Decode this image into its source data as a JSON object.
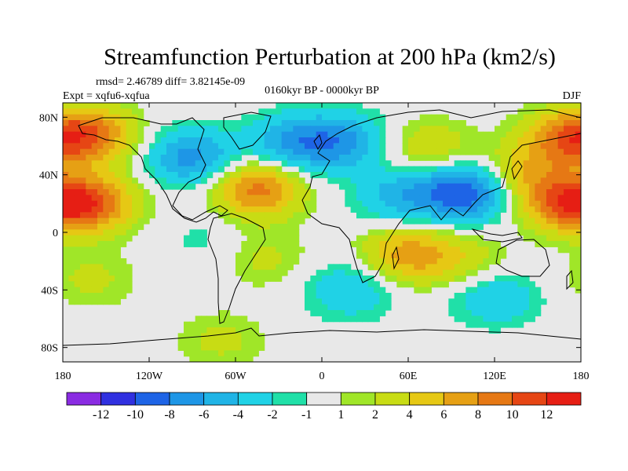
{
  "figure": {
    "title": "Streamfunction Perturbation at 200 hPa (km2/s)",
    "stats": "rmsd= 2.46789 diff= 3.82145e-09",
    "experiment": "Expt = xqfu6-xqfua",
    "period": "0160kyr BP - 0000kyr BP",
    "season": "DJF"
  },
  "colors": {
    "background": "#e8e8e8",
    "coastline": "#000000"
  },
  "chart_data": {
    "type": "heatmap",
    "title": "Streamfunction Perturbation at 200 hPa (km2/s)",
    "units": "km2/s",
    "projection": "equirectangular",
    "x_range": [
      -180,
      180
    ],
    "y_range": [
      -90,
      90
    ],
    "x_ticks": [
      {
        "value": -180,
        "label": "180"
      },
      {
        "value": -120,
        "label": "120W"
      },
      {
        "value": -60,
        "label": "60W"
      },
      {
        "value": 0,
        "label": "0"
      },
      {
        "value": 60,
        "label": "60E"
      },
      {
        "value": 120,
        "label": "120E"
      },
      {
        "value": 180,
        "label": "180"
      }
    ],
    "y_ticks": [
      {
        "value": 80,
        "label": "80N"
      },
      {
        "value": 40,
        "label": "40N"
      },
      {
        "value": 0,
        "label": "0"
      },
      {
        "value": -40,
        "label": "40S"
      },
      {
        "value": -80,
        "label": "80S"
      }
    ],
    "levels": [
      -12,
      -10,
      -8,
      -6,
      -4,
      -2,
      -1,
      1,
      2,
      4,
      6,
      8,
      10,
      12
    ],
    "level_labels": [
      "-12",
      "-10",
      "-8",
      "-6",
      "-4",
      "-2",
      "-1",
      "1",
      "2",
      "4",
      "6",
      "8",
      "10",
      "12"
    ],
    "colorbar_colors": [
      "#8a2be2",
      "#3030e0",
      "#1e64e6",
      "#1e96e6",
      "#20b4e6",
      "#20d2e6",
      "#20e0a8",
      "#e8e8e8",
      "#a0e628",
      "#c8dc14",
      "#e6c814",
      "#e6a014",
      "#e67814",
      "#e64614",
      "#e61e14"
    ],
    "anomalies": [
      {
        "lon": -160,
        "lat": 68,
        "value": 8
      },
      {
        "lon": 170,
        "lat": 65,
        "value": 8
      },
      {
        "lon": -160,
        "lat": 20,
        "value": 9
      },
      {
        "lon": 170,
        "lat": 20,
        "value": 9
      },
      {
        "lon": -45,
        "lat": 30,
        "value": 9
      },
      {
        "lon": 140,
        "lat": 40,
        "value": 5
      },
      {
        "lon": 75,
        "lat": 58,
        "value": 4
      },
      {
        "lon": -90,
        "lat": 52,
        "value": -7
      },
      {
        "lon": -20,
        "lat": 62,
        "value": -6
      },
      {
        "lon": 15,
        "lat": 63,
        "value": -6
      },
      {
        "lon": 100,
        "lat": 28,
        "value": -10
      },
      {
        "lon": 55,
        "lat": 25,
        "value": -5
      },
      {
        "lon": 60,
        "lat": -15,
        "value": 7
      },
      {
        "lon": 100,
        "lat": -20,
        "value": 3
      },
      {
        "lon": -160,
        "lat": -33,
        "value": 2.5
      },
      {
        "lon": -40,
        "lat": -18,
        "value": 2.5
      },
      {
        "lon": -80,
        "lat": -5,
        "value": -1.5
      },
      {
        "lon": 20,
        "lat": -40,
        "value": -4
      },
      {
        "lon": 120,
        "lat": -45,
        "value": -4
      },
      {
        "lon": -70,
        "lat": -75,
        "value": 2.5
      }
    ]
  }
}
